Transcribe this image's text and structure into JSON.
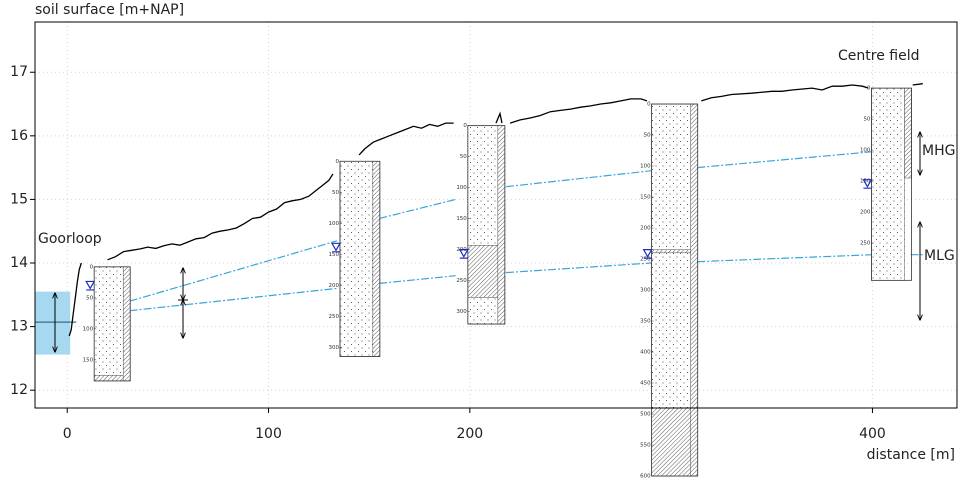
{
  "chart_data": {
    "type": "cross-section",
    "y_label": "soil surface [m+NAP]",
    "x_label": "distance [m]",
    "xlim": [
      -16,
      442
    ],
    "ylim": [
      11.72,
      17.79
    ],
    "xticks": [
      0,
      100,
      200,
      400
    ],
    "yticks": [
      12,
      13,
      14,
      15,
      16,
      17
    ],
    "grid": true,
    "annotations": [
      "Goorloop",
      "Centre field"
    ],
    "surface": {
      "color": "#000000",
      "x": [
        1,
        2,
        3,
        4,
        5,
        6,
        7,
        null,
        20,
        24,
        28,
        32,
        36,
        40,
        44,
        48,
        52,
        56,
        60,
        64,
        68,
        72,
        76,
        80,
        84,
        88,
        92,
        96,
        100,
        104,
        108,
        112,
        116,
        120,
        124,
        128,
        130,
        132,
        null,
        145,
        148,
        152,
        156,
        160,
        164,
        168,
        172,
        176,
        180,
        184,
        188,
        192,
        null,
        213,
        215,
        216,
        null,
        220,
        225,
        230,
        235,
        240,
        245,
        250,
        255,
        260,
        265,
        270,
        275,
        280,
        285,
        288,
        null,
        315,
        320,
        325,
        330,
        340,
        350,
        355,
        360,
        370,
        375,
        380,
        385,
        390,
        395,
        398,
        null,
        420,
        425
      ],
      "values": [
        12.85,
        12.95,
        13.2,
        13.45,
        13.7,
        13.9,
        14.0,
        null,
        14.05,
        14.1,
        14.18,
        14.2,
        14.22,
        14.25,
        14.23,
        14.27,
        14.3,
        14.28,
        14.33,
        14.38,
        14.4,
        14.47,
        14.5,
        14.52,
        14.55,
        14.62,
        14.7,
        14.72,
        14.8,
        14.85,
        14.95,
        14.98,
        15.0,
        15.05,
        15.15,
        15.25,
        15.3,
        15.4,
        null,
        15.7,
        15.8,
        15.9,
        15.95,
        16.0,
        16.05,
        16.1,
        16.15,
        16.12,
        16.18,
        16.15,
        16.2,
        16.2,
        null,
        16.2,
        16.35,
        16.2,
        null,
        16.2,
        16.25,
        16.28,
        16.32,
        16.38,
        16.4,
        16.42,
        16.45,
        16.47,
        16.5,
        16.52,
        16.55,
        16.58,
        16.58,
        16.55,
        null,
        16.55,
        16.6,
        16.62,
        16.65,
        16.67,
        16.7,
        16.7,
        16.72,
        16.75,
        16.72,
        16.78,
        16.78,
        16.8,
        16.78,
        16.75,
        null,
        16.8,
        16.82
      ]
    },
    "series": [
      {
        "name": "MHG",
        "color": "#3aa6d8",
        "x": [
          31,
          134,
          null,
          155,
          193,
          null,
          218,
          290,
          null,
          313,
          400
        ],
        "values": [
          13.4,
          14.35,
          null,
          14.7,
          15.0,
          null,
          15.2,
          15.45,
          null,
          15.5,
          15.75
        ]
      },
      {
        "name": "MLG",
        "color": "#3aa6d8",
        "x": [
          31,
          134,
          null,
          155,
          193,
          null,
          218,
          290,
          null,
          313,
          400,
          null,
          419,
          425
        ],
        "values": [
          13.25,
          13.6,
          null,
          13.68,
          13.8,
          null,
          13.85,
          14.0,
          null,
          14.02,
          14.13,
          null,
          14.13,
          14.13
        ]
      }
    ],
    "ditch": {
      "x": [
        -16,
        1.5
      ],
      "top": 13.55,
      "bottom": 12.56,
      "level": 13.07,
      "color": "#a6d9f0"
    },
    "profiles": [
      {
        "x": [
          13.4,
          31.3
        ],
        "top": 13.94,
        "depth": 184,
        "ticks": [
          0,
          50,
          100,
          150
        ],
        "water_level": 13.6,
        "layers": [
          {
            "from": 0,
            "to": 175,
            "pattern": "dots"
          },
          {
            "from": 175,
            "to": 184,
            "pattern": "hatch"
          }
        ],
        "strip": [
          0,
          184
        ]
      },
      {
        "x": [
          135.5,
          155.3
        ],
        "top": 15.6,
        "depth": 315,
        "ticks": [
          0,
          50,
          100,
          150,
          200,
          250,
          300
        ],
        "water_level": 14.2,
        "layers": [
          {
            "from": 0,
            "to": 315,
            "pattern": "dots"
          }
        ],
        "strip": [
          0,
          315
        ]
      },
      {
        "x": [
          199,
          217.4
        ],
        "top": 16.16,
        "depth": 320,
        "ticks": [
          0,
          50,
          100,
          150,
          200,
          250,
          300
        ],
        "water_level": 14.1,
        "layers": [
          {
            "from": 0,
            "to": 193,
            "pattern": "dots"
          },
          {
            "from": 193,
            "to": 277,
            "pattern": "hatch"
          },
          {
            "from": 277,
            "to": 320,
            "pattern": "dots"
          }
        ],
        "strip": [
          0,
          320
        ]
      },
      {
        "x": [
          290.3,
          313.2
        ],
        "top": 16.5,
        "depth": 600,
        "ticks": [
          0,
          50,
          100,
          150,
          200,
          250,
          300,
          350,
          400,
          450,
          500,
          550,
          600
        ],
        "water_level": 14.1,
        "layers": [
          {
            "from": 0,
            "to": 235,
            "pattern": "dots"
          },
          {
            "from": 235,
            "to": 240,
            "pattern": "hatch"
          },
          {
            "from": 240,
            "to": 490,
            "pattern": "dots"
          },
          {
            "from": 490,
            "to": 600,
            "pattern": "hatch"
          }
        ],
        "strip": [
          0,
          600
        ]
      },
      {
        "x": [
          399.5,
          419.4
        ],
        "top": 16.75,
        "depth": 310,
        "ticks": [
          0,
          50,
          100,
          150,
          200,
          250
        ],
        "water_level": 15.2,
        "layers": [
          {
            "from": 0,
            "to": 310,
            "pattern": "dots"
          }
        ],
        "strip": [
          0,
          145
        ]
      }
    ]
  }
}
